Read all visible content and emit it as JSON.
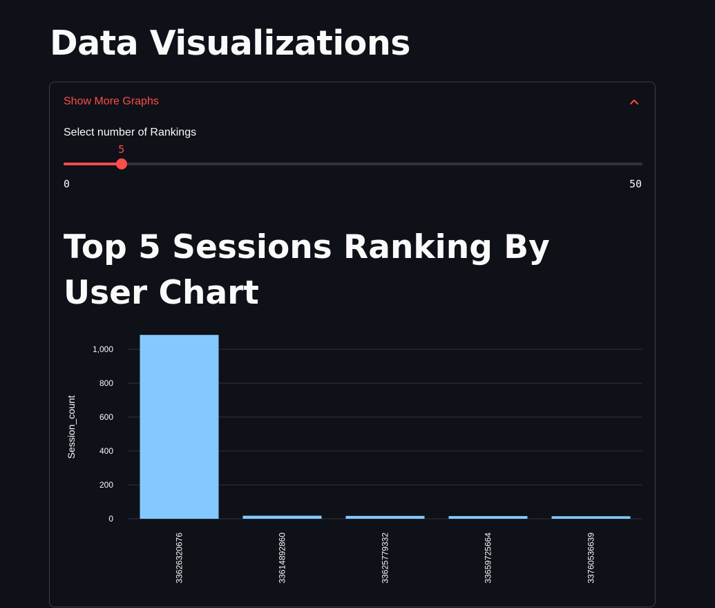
{
  "page": {
    "title": "Data Visualizations"
  },
  "expander": {
    "label": "Show More Graphs",
    "expanded": true
  },
  "slider": {
    "label": "Select number of Rankings",
    "value": 5,
    "min": 0,
    "max": 50,
    "value_text": "5",
    "min_text": "0",
    "max_text": "50"
  },
  "chart_section": {
    "title": "Top 5 Sessions Ranking By User Chart"
  },
  "colors": {
    "accent": "#ff4b4b",
    "bar": "#83c9ff",
    "background": "#0e1117",
    "grid": "#31333b"
  },
  "chart_data": {
    "type": "bar",
    "title": "Top 5 Sessions Ranking By User Chart",
    "xlabel": "",
    "ylabel": "Session_count",
    "categories": [
      "33626320676",
      "33614892860",
      "33625779332",
      "33659725664",
      "33760536639"
    ],
    "values": [
      1085,
      18,
      17,
      16,
      15
    ],
    "ylim": [
      0,
      1000
    ],
    "yticks": [
      0,
      200,
      400,
      600,
      800,
      1000
    ],
    "ytick_labels": [
      "0",
      "200",
      "400",
      "600",
      "800",
      "1,000"
    ],
    "grid": true,
    "legend": "none"
  }
}
